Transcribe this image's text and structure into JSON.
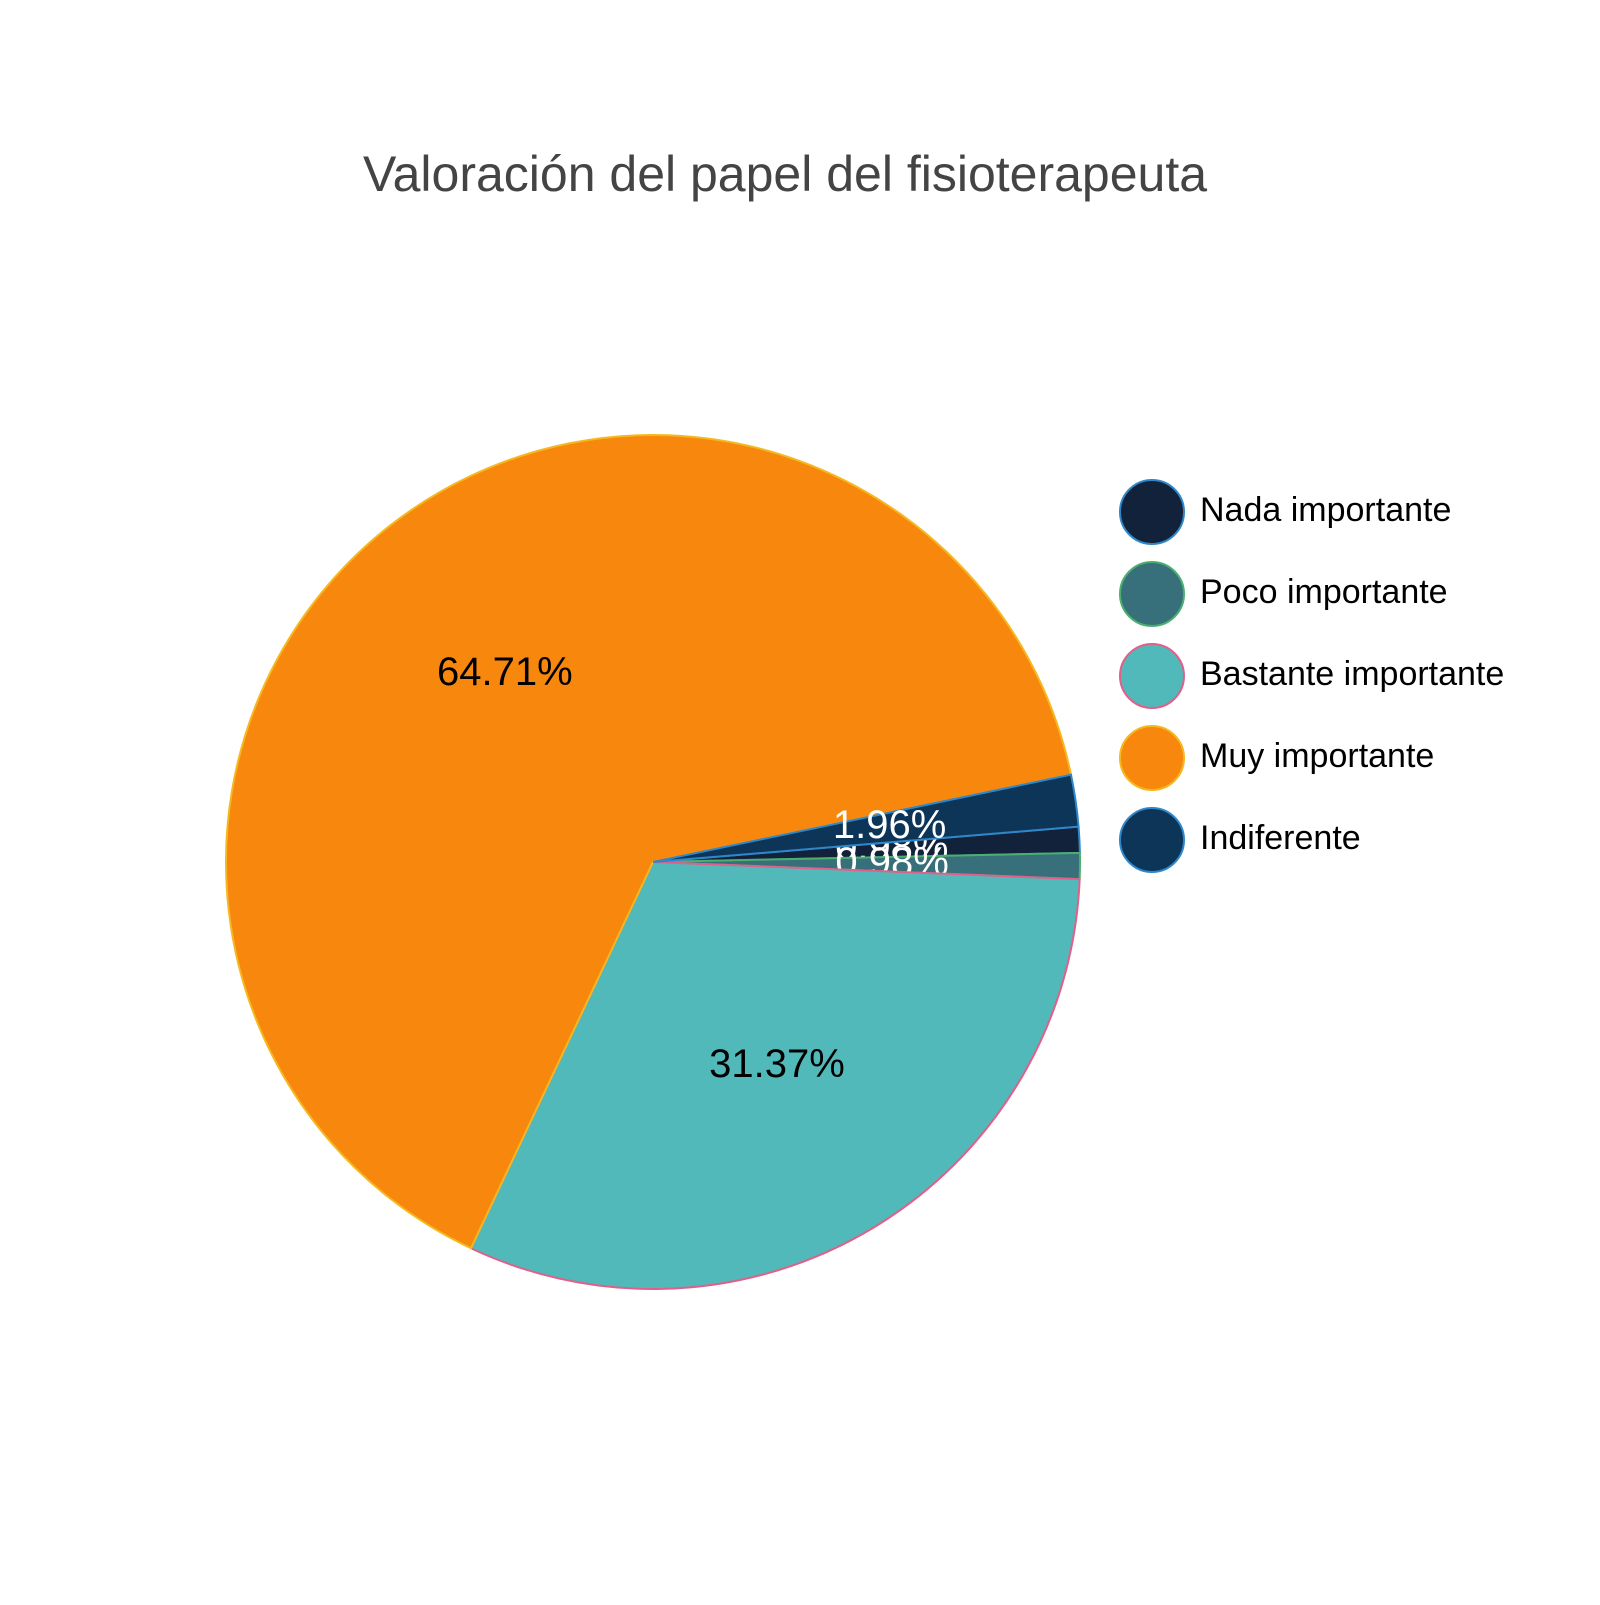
{
  "chart_data": {
    "type": "pie",
    "title": "Valoración del papel del fisioterapeuta",
    "categories": [
      "Nada importante",
      "Poco importante",
      "Bastante importante",
      "Muy importante",
      "Indiferente"
    ],
    "values": [
      0.98,
      0.98,
      31.37,
      64.71,
      1.96
    ],
    "value_labels": [
      "0.98%",
      "0.98%",
      "31.37%",
      "64.71%",
      "1.96%"
    ],
    "colors": [
      "#12223a",
      "#37707a",
      "#52b9ba",
      "#f8870e",
      "#0c3558"
    ],
    "line_colors": [
      "#2f86c8",
      "#4caf6e",
      "#e0608a",
      "#f5b820",
      "#2f86c8"
    ],
    "legend": "right"
  }
}
